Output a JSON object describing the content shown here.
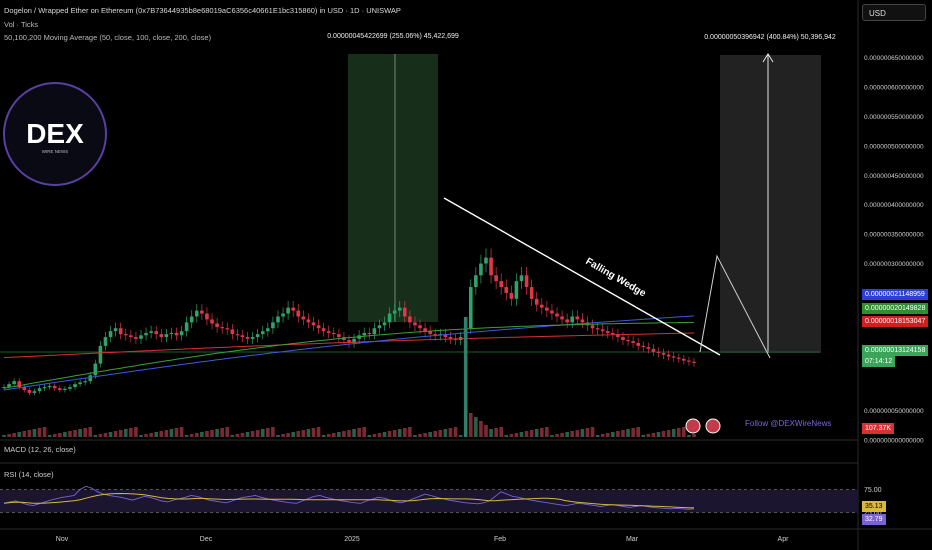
{
  "header": {
    "title": "Dogelon / Wrapped Ether on Ethereum (0x7B73644935b8e68019aC6356c40661E1bc315860) in USD · 1D · UNISWAP",
    "vol_label": "Vol · Ticks",
    "ma_label": "50,100,200 Moving Average (50, close, 100, close, 200, close)"
  },
  "currency_button": "USD",
  "logo": {
    "text": "DEX",
    "subtext": "WIRE NEWS"
  },
  "annotations": {
    "measure_left": "0.00000045422699 (255.06%) 45,422,699",
    "measure_right": "0.00000050396942 (400.84%) 50,396,942",
    "pattern": "Falling Wedge",
    "follow": "Follow @DEXWireNews"
  },
  "price_axis": {
    "ticks": [
      "0.000000650000000",
      "0.000000600000000",
      "0.000000550000000",
      "0.000000500000000",
      "0.000000450000000",
      "0.000000400000000",
      "0.000000350000000",
      "0.000000300000000",
      "0.000000250000000",
      "0.000000150000000",
      "0.000000050000000",
      "0.000000000000000"
    ]
  },
  "price_tags": [
    {
      "label": "0.00000021148959",
      "color": "#2e3fd8"
    },
    {
      "label": "0.00000020149828",
      "color": "#2f8f2f"
    },
    {
      "label": "0.00000018153047",
      "color": "#d01f1f"
    },
    {
      "label": "0.00000013124158",
      "color": "#3aa55a"
    },
    {
      "label": "07:14:12",
      "color": "#3aa55a"
    },
    {
      "label": "107.37K",
      "color": "#d23434"
    }
  ],
  "macd_label": "MACD (12, 26, close)",
  "rsi": {
    "label": "RSI (14, close)",
    "levels": [
      "75.00",
      "25.00"
    ],
    "tag_ma": "35.13",
    "tag_rsi": "32.79"
  },
  "time_axis": [
    "Nov",
    "Dec",
    "2025",
    "Feb",
    "Mar",
    "Apr"
  ],
  "colors": {
    "up": "#2fa36a",
    "down": "#e0364a",
    "ma50": "#3aa03a",
    "ma100": "#3b5bdb",
    "ma200": "#d83030",
    "rsi": "#7b62d6",
    "rsi_ma": "#d9b83a"
  },
  "chart_data": {
    "type": "candlestick",
    "price_ylim": [
      0,
      6.8e-07
    ],
    "x_dates": [
      "2024-10-14",
      "2025-03-14"
    ],
    "candles_close": [
      9e-08,
      9.5e-08,
      1e-07,
      9e-08,
      8.5e-08,
      8e-08,
      8.3e-08,
      8.8e-08,
      9e-08,
      9.2e-08,
      8.8e-08,
      8.5e-08,
      8.7e-08,
      9e-08,
      9.5e-08,
      9.8e-08,
      1e-07,
      1.1e-07,
      1.3e-07,
      1.6e-07,
      1.75e-07,
      1.85e-07,
      1.9e-07,
      1.8e-07,
      1.78e-07,
      1.75e-07,
      1.72e-07,
      1.78e-07,
      1.82e-07,
      1.85e-07,
      1.8e-07,
      1.75e-07,
      1.8e-07,
      1.82e-07,
      1.78e-07,
      1.85e-07,
      2e-07,
      2.1e-07,
      2.2e-07,
      2.15e-07,
      2.05e-07,
      1.98e-07,
      1.92e-07,
      1.9e-07,
      1.88e-07,
      1.8e-07,
      1.78e-07,
      1.75e-07,
      1.72e-07,
      1.75e-07,
      1.8e-07,
      1.85e-07,
      1.9e-07,
      2e-07,
      2.1e-07,
      2.15e-07,
      2.25e-07,
      2.2e-07,
      2.1e-07,
      2.05e-07,
      2e-07,
      1.95e-07,
      1.9e-07,
      1.85e-07,
      1.82e-07,
      1.8e-07,
      1.75e-07,
      1.7e-07,
      1.65e-07,
      1.72e-07,
      1.78e-07,
      1.82e-07,
      1.8e-07,
      1.9e-07,
      1.95e-07,
      2e-07,
      2.15e-07,
      2.2e-07,
      2.25e-07,
      2.1e-07,
      2e-07,
      1.95e-07,
      1.9e-07,
      1.85e-07,
      1.8e-07,
      1.78e-07,
      1.8e-07,
      1.75e-07,
      1.72e-07,
      1.7e-07,
      1.75e-07,
      1.9e-07,
      2.6e-07,
      2.8e-07,
      3e-07,
      3.1e-07,
      2.8e-07,
      2.7e-07,
      2.6e-07,
      2.5e-07,
      2.4e-07,
      2.7e-07,
      2.8e-07,
      2.6e-07,
      2.4e-07,
      2.3e-07,
      2.25e-07,
      2.2e-07,
      2.15e-07,
      2.1e-07,
      2.05e-07,
      2e-07,
      2.1e-07,
      2.05e-07,
      2e-07,
      1.95e-07,
      1.9e-07,
      1.88e-07,
      1.85e-07,
      1.82e-07,
      1.8e-07,
      1.75e-07,
      1.7e-07,
      1.68e-07,
      1.65e-07,
      1.6e-07,
      1.58e-07,
      1.55e-07,
      1.5e-07,
      1.48e-07,
      1.45e-07,
      1.42e-07,
      1.4e-07,
      1.38e-07,
      1.35e-07,
      1.33e-07,
      1.31e-07
    ],
    "series": [
      {
        "name": "MA 50",
        "values_start": 8.8e-08,
        "values_end": 2e-07
      },
      {
        "name": "MA 100",
        "values_start": 8.5e-08,
        "values_end": 2.11e-07
      },
      {
        "name": "MA 200",
        "values_start": 1.4e-07,
        "values_end": 1.82e-07
      }
    ],
    "rsi_values": [
      45,
      48,
      50,
      46,
      42,
      40,
      44,
      48,
      52,
      55,
      58,
      60,
      62,
      75,
      82,
      78,
      70,
      65,
      62,
      60,
      58,
      55,
      52,
      56,
      60,
      58,
      54,
      50,
      48,
      52,
      55,
      58,
      62,
      60,
      56,
      52,
      50,
      48,
      46,
      50,
      55,
      58,
      60,
      62,
      58,
      55,
      52,
      50,
      48,
      46,
      45,
      50,
      55,
      60,
      62,
      58,
      55,
      52,
      50,
      48,
      46,
      45,
      50,
      54,
      58,
      56,
      52,
      48,
      46,
      50,
      55,
      60,
      65,
      62,
      58,
      55,
      52,
      50,
      48,
      46,
      45,
      44,
      46,
      50,
      60,
      70,
      65,
      60,
      58,
      55,
      52,
      50,
      48,
      46,
      44,
      42,
      40,
      42,
      45,
      44,
      42,
      40,
      38,
      40,
      42,
      40,
      38,
      36,
      38,
      40,
      38,
      36,
      35,
      34,
      33,
      34,
      33,
      32,
      33
    ],
    "rsi_ylim": [
      0,
      100
    ],
    "rsi_levels": [
      75,
      25
    ]
  }
}
